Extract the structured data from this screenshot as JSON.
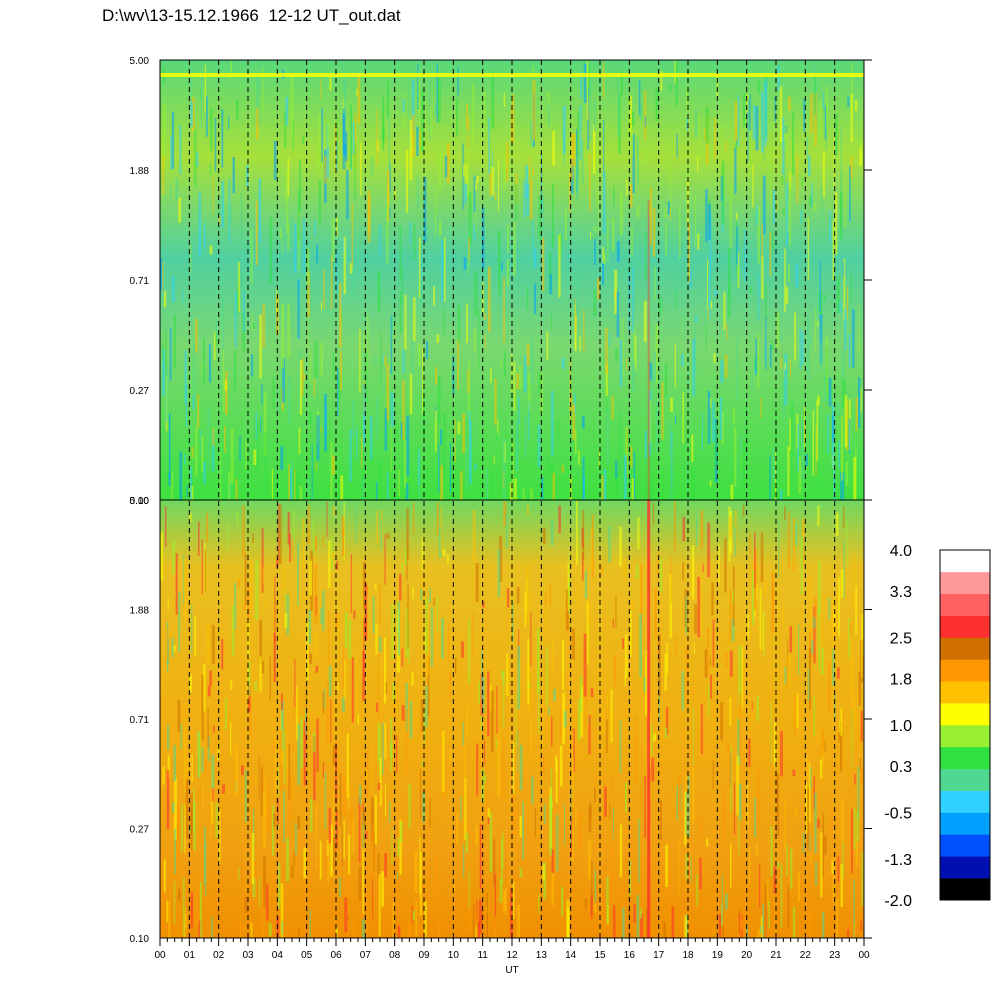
{
  "title": "D:\\wv\\13-15.12.1966  12-12 UT_out.dat",
  "chart_data": {
    "type": "heatmap",
    "xlabel": "UT",
    "x_ticks": [
      "00",
      "01",
      "02",
      "03",
      "04",
      "05",
      "06",
      "07",
      "08",
      "09",
      "10",
      "11",
      "12",
      "13",
      "14",
      "15",
      "16",
      "17",
      "18",
      "19",
      "20",
      "21",
      "22",
      "23",
      "00"
    ],
    "panels": [
      {
        "name": "",
        "y_ticks": [
          "5.00",
          "1.88",
          "0.71",
          "0.27",
          "0.10"
        ],
        "ylim": [
          0.1,
          5.0
        ],
        "y_scale": "log",
        "dominant_levels": "green-cyan-yellow (0.3 to 1.0)"
      },
      {
        "name": "",
        "y_ticks": [
          "5.00",
          "1.88",
          "0.71",
          "0.27",
          "0.10"
        ],
        "ylim": [
          0.1,
          5.0
        ],
        "y_scale": "log",
        "dominant_levels": "orange-yellow (1.0 to 2.5)"
      }
    ],
    "colorbar": {
      "tick_labels": [
        "4.0",
        "3.3",
        "2.5",
        "1.8",
        "1.0",
        "0.3",
        "-0.5",
        "-1.3",
        "-2.0"
      ],
      "range": [
        -2.0,
        4.0
      ],
      "colors": [
        "#000000",
        "#0010b0",
        "#0050ff",
        "#00a0ff",
        "#30d0ff",
        "#50d890",
        "#30e040",
        "#98f030",
        "#ffff00",
        "#ffc000",
        "#ff9800",
        "#d07000",
        "#ff3030",
        "#ff6060",
        "#ff9898",
        "#ffffff"
      ]
    }
  }
}
